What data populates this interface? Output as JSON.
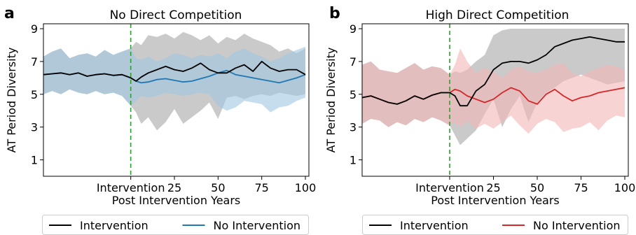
{
  "chart_data": [
    {
      "type": "line",
      "panel_label": "a",
      "title": "No Direct Competition",
      "xlabel": "Post Intervention Years",
      "ylabel": "AT Period Diversity",
      "xlim": [
        -50,
        102
      ],
      "ylim": [
        0,
        9.3
      ],
      "xticks": [
        25,
        50,
        75,
        100
      ],
      "yticks": [
        1,
        3,
        5,
        7,
        9
      ],
      "intervention_x": 0,
      "intervention_label": "Intervention",
      "legend_position": "bottom",
      "series": [
        {
          "name": "Intervention",
          "color": "#000000",
          "band_color": "#bdbdbd",
          "x": [
            -50,
            -45,
            -40,
            -35,
            -30,
            -25,
            -20,
            -15,
            -10,
            -5,
            0,
            3,
            6,
            10,
            15,
            20,
            25,
            30,
            35,
            40,
            45,
            50,
            55,
            60,
            65,
            70,
            75,
            80,
            85,
            90,
            95,
            100
          ],
          "mean": [
            6.2,
            6.25,
            6.3,
            6.2,
            6.3,
            6.1,
            6.2,
            6.25,
            6.15,
            6.2,
            6.0,
            5.8,
            6.05,
            6.3,
            6.5,
            6.7,
            6.5,
            6.4,
            6.6,
            6.9,
            6.5,
            6.3,
            6.3,
            6.6,
            6.8,
            6.4,
            7.0,
            6.6,
            6.4,
            6.5,
            6.5,
            6.2
          ],
          "lower": [
            5.0,
            5.2,
            5.0,
            5.3,
            5.1,
            5.0,
            5.2,
            5.0,
            5.1,
            4.9,
            4.3,
            3.9,
            3.2,
            3.6,
            2.8,
            3.3,
            4.1,
            3.2,
            3.6,
            4.0,
            4.5,
            3.5,
            4.8,
            4.9,
            4.7,
            4.9,
            5.0,
            4.9,
            5.1,
            5.0,
            4.9,
            5.0
          ],
          "upper": [
            7.3,
            7.6,
            7.8,
            7.2,
            7.4,
            7.5,
            7.3,
            7.7,
            7.4,
            7.6,
            7.8,
            8.2,
            8.0,
            8.6,
            8.5,
            8.7,
            8.4,
            8.8,
            8.6,
            8.3,
            8.6,
            8.1,
            8.5,
            8.3,
            8.7,
            8.4,
            8.2,
            8.0,
            7.6,
            7.8,
            7.5,
            7.8
          ]
        },
        {
          "name": "No Intervention",
          "color": "#1f77b4",
          "band_color": "#9ec6e0",
          "x": [
            -50,
            -45,
            -40,
            -35,
            -30,
            -25,
            -20,
            -15,
            -10,
            -5,
            0,
            3,
            6,
            10,
            15,
            20,
            25,
            30,
            35,
            40,
            45,
            50,
            55,
            60,
            65,
            70,
            75,
            80,
            85,
            90,
            95,
            100
          ],
          "mean": [
            6.2,
            6.25,
            6.3,
            6.2,
            6.3,
            6.1,
            6.2,
            6.25,
            6.15,
            6.2,
            6.0,
            5.8,
            5.7,
            5.75,
            5.9,
            5.95,
            5.85,
            5.75,
            5.8,
            5.95,
            6.1,
            6.3,
            6.45,
            6.2,
            6.1,
            6.0,
            5.9,
            5.8,
            5.7,
            5.85,
            6.0,
            6.2
          ],
          "lower": [
            5.0,
            5.2,
            5.0,
            5.3,
            5.1,
            5.0,
            5.2,
            5.0,
            5.1,
            4.9,
            4.3,
            4.6,
            4.9,
            4.8,
            4.9,
            5.1,
            5.0,
            4.9,
            5.0,
            5.1,
            5.0,
            4.3,
            4.0,
            4.2,
            4.6,
            4.5,
            4.4,
            3.9,
            4.2,
            4.3,
            4.6,
            4.8
          ],
          "upper": [
            7.3,
            7.6,
            7.8,
            7.2,
            7.4,
            7.5,
            7.3,
            7.7,
            7.4,
            7.6,
            7.8,
            7.2,
            7.1,
            7.3,
            7.0,
            7.2,
            7.5,
            7.4,
            7.2,
            7.4,
            7.3,
            7.5,
            7.2,
            7.6,
            7.8,
            7.5,
            7.3,
            7.0,
            7.2,
            7.5,
            7.7,
            7.9
          ]
        }
      ]
    },
    {
      "type": "line",
      "panel_label": "b",
      "title": "High Direct Competition",
      "xlabel": "Post Intervention Years",
      "ylabel": "AT Period Diversity",
      "xlim": [
        -50,
        102
      ],
      "ylim": [
        0,
        9.3
      ],
      "xticks": [
        25,
        50,
        75,
        100
      ],
      "yticks": [
        1,
        3,
        5,
        7,
        9
      ],
      "intervention_x": 0,
      "intervention_label": "Intervention",
      "legend_position": "bottom",
      "series": [
        {
          "name": "Intervention",
          "color": "#000000",
          "band_color": "#bdbdbd",
          "x": [
            -50,
            -45,
            -40,
            -35,
            -30,
            -25,
            -20,
            -15,
            -10,
            -5,
            0,
            3,
            6,
            10,
            15,
            20,
            25,
            30,
            35,
            40,
            45,
            50,
            55,
            60,
            65,
            70,
            75,
            80,
            85,
            90,
            95,
            100
          ],
          "mean": [
            4.8,
            4.9,
            4.7,
            4.5,
            4.4,
            4.6,
            4.9,
            4.7,
            4.95,
            5.1,
            5.1,
            4.9,
            4.3,
            4.3,
            5.2,
            5.6,
            6.5,
            6.9,
            7.0,
            7.0,
            6.9,
            7.1,
            7.4,
            7.9,
            8.1,
            8.3,
            8.4,
            8.5,
            8.4,
            8.3,
            8.2,
            8.2
          ],
          "lower": [
            3.2,
            3.5,
            3.4,
            3.0,
            3.3,
            3.1,
            3.5,
            3.3,
            3.6,
            3.4,
            3.1,
            2.5,
            1.9,
            2.3,
            2.8,
            3.8,
            4.7,
            3.0,
            4.1,
            4.9,
            3.3,
            4.5,
            5.1,
            5.4,
            5.8,
            6.0,
            6.2,
            6.0,
            5.8,
            5.6,
            5.7,
            5.8
          ],
          "upper": [
            6.8,
            7.0,
            6.5,
            6.4,
            6.3,
            6.6,
            6.9,
            6.5,
            6.7,
            6.6,
            6.2,
            6.4,
            6.3,
            6.5,
            7.0,
            7.4,
            8.6,
            8.9,
            9.0,
            9.0,
            9.0,
            9.0,
            9.0,
            9.0,
            9.0,
            9.0,
            9.0,
            9.0,
            9.0,
            9.0,
            9.0,
            9.0
          ]
        },
        {
          "name": "No Intervention",
          "color": "#d62728",
          "band_color": "#f4b6b6",
          "x": [
            -50,
            -45,
            -40,
            -35,
            -30,
            -25,
            -20,
            -15,
            -10,
            -5,
            0,
            3,
            6,
            10,
            15,
            20,
            25,
            30,
            35,
            40,
            45,
            50,
            55,
            60,
            65,
            70,
            75,
            80,
            85,
            90,
            95,
            100
          ],
          "mean": [
            4.8,
            4.9,
            4.7,
            4.5,
            4.4,
            4.6,
            4.9,
            4.7,
            4.95,
            5.1,
            5.1,
            5.3,
            5.2,
            4.9,
            4.7,
            4.5,
            4.7,
            5.1,
            5.4,
            5.2,
            4.6,
            4.4,
            5.0,
            5.3,
            4.9,
            4.6,
            4.8,
            4.9,
            5.1,
            5.2,
            5.3,
            5.4
          ],
          "lower": [
            3.2,
            3.5,
            3.4,
            3.0,
            3.3,
            3.1,
            3.5,
            3.3,
            3.6,
            3.4,
            3.1,
            3.3,
            3.0,
            3.4,
            2.9,
            3.2,
            2.9,
            3.3,
            3.7,
            3.1,
            2.6,
            3.2,
            3.5,
            3.3,
            2.7,
            2.9,
            3.0,
            3.3,
            2.8,
            3.4,
            3.7,
            3.6
          ],
          "upper": [
            6.8,
            7.0,
            6.5,
            6.4,
            6.3,
            6.6,
            6.9,
            6.5,
            6.7,
            6.6,
            6.2,
            6.8,
            7.8,
            7.0,
            6.3,
            6.6,
            6.4,
            6.0,
            6.5,
            6.7,
            6.4,
            6.3,
            6.5,
            6.8,
            6.9,
            6.3,
            6.1,
            6.4,
            6.6,
            6.8,
            6.7,
            6.5
          ]
        }
      ]
    }
  ]
}
